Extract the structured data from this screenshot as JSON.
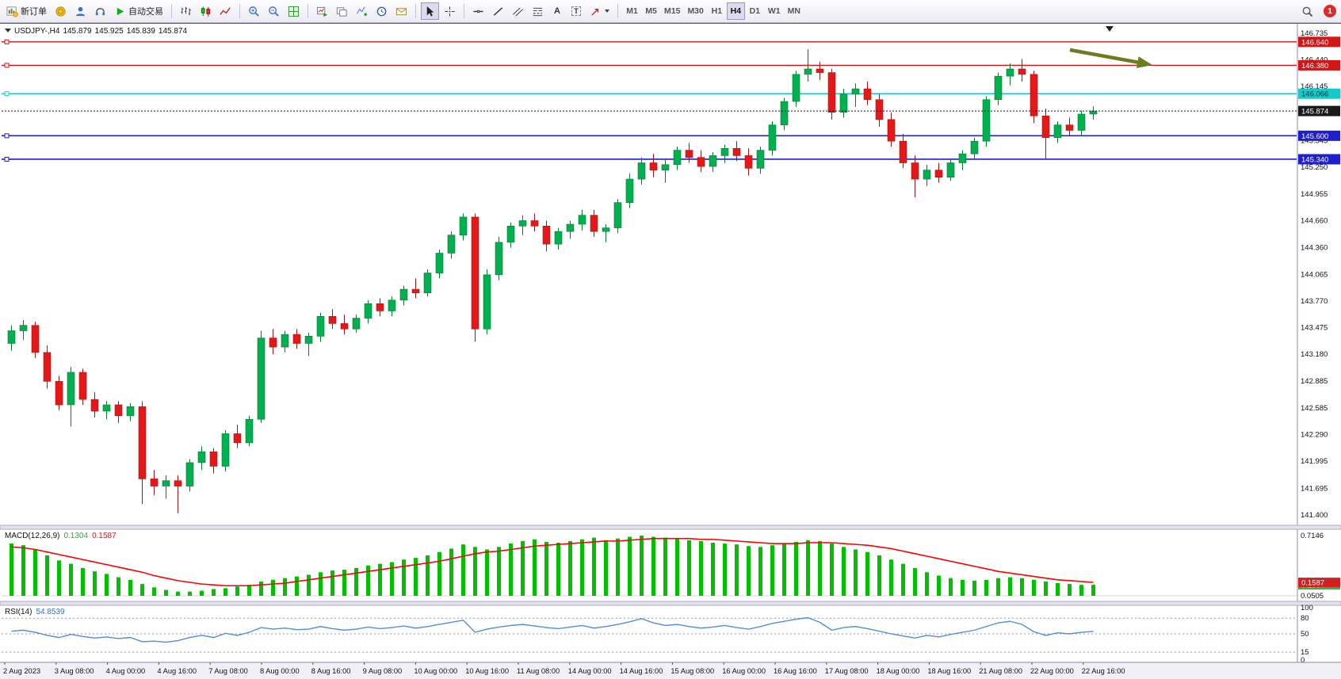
{
  "toolbar": {
    "new_order": "新订单",
    "auto_trading": "自动交易",
    "text_tool": "A",
    "label_tool": "T",
    "timeframes": [
      "M1",
      "M5",
      "M15",
      "M30",
      "H1",
      "H4",
      "D1",
      "W1",
      "MN"
    ],
    "active_timeframe": "H4",
    "notification_badge": "1"
  },
  "chart_header": {
    "symbol_period": "USDJPY-,H4",
    "open": "145.879",
    "high": "145.925",
    "low": "145.839",
    "close": "145.874"
  },
  "indicators": {
    "macd": {
      "label": "MACD(12,26,9)",
      "value_main": "0.1304",
      "value_signal": "0.1587"
    },
    "rsi": {
      "label": "RSI(14)",
      "value": "54.8539"
    }
  },
  "chart_data": {
    "type": "candlestick",
    "symbol": "USDJPY-",
    "period": "H4",
    "title": "USDJPY-,H4 145.879 145.925 145.839 145.874",
    "price_axis_ticks": [
      "146.735",
      "146.440",
      "146.145",
      "145.850",
      "145.545",
      "145.250",
      "144.955",
      "144.660",
      "144.360",
      "144.065",
      "143.770",
      "143.475",
      "143.180",
      "142.885",
      "142.585",
      "142.290",
      "141.995",
      "141.695",
      "141.400"
    ],
    "hlines": [
      {
        "price": 146.64,
        "label": "146.640",
        "color": "#d01616",
        "width": 1.3,
        "anchor": true,
        "tag_fg": "#ffffff"
      },
      {
        "price": 146.38,
        "label": "146.380",
        "color": "#d01616",
        "width": 1.3,
        "anchor": true,
        "tag_fg": "#ffffff"
      },
      {
        "price": 146.066,
        "label": "146.066",
        "color": "#17c9c9",
        "width": 1.6,
        "anchor": true,
        "tag_fg": "#063a3a"
      },
      {
        "price": 145.874,
        "label": "145.874",
        "color": "#1a1a1a",
        "width": 1,
        "style": "dotted",
        "role": "current",
        "tag_fg": "#ffffff"
      },
      {
        "price": 145.6,
        "label": "145.600",
        "color": "#1f1fd0",
        "width": 1.6,
        "anchor": true,
        "tag_fg": "#ffffff"
      },
      {
        "price": 145.34,
        "label": "145.340",
        "color": "#1f1fd0",
        "width": 1.6,
        "anchor": true,
        "tag_fg": "#ffffff"
      }
    ],
    "candles": [
      [
        143.3,
        143.5,
        143.22,
        143.44
      ],
      [
        143.44,
        143.56,
        143.34,
        143.5
      ],
      [
        143.5,
        143.54,
        143.14,
        143.2
      ],
      [
        143.2,
        143.28,
        142.8,
        142.88
      ],
      [
        142.88,
        142.94,
        142.56,
        142.62
      ],
      [
        142.62,
        143.04,
        142.38,
        142.98
      ],
      [
        142.98,
        143.02,
        142.62,
        142.68
      ],
      [
        142.68,
        142.76,
        142.48,
        142.55
      ],
      [
        142.55,
        142.66,
        142.46,
        142.62
      ],
      [
        142.62,
        142.66,
        142.42,
        142.5
      ],
      [
        142.5,
        142.64,
        142.44,
        142.6
      ],
      [
        142.6,
        142.66,
        141.52,
        141.8
      ],
      [
        141.8,
        141.9,
        141.62,
        141.72
      ],
      [
        141.72,
        141.84,
        141.58,
        141.78
      ],
      [
        141.78,
        141.84,
        141.42,
        141.72
      ],
      [
        141.72,
        142.02,
        141.66,
        141.98
      ],
      [
        141.98,
        142.16,
        141.9,
        142.1
      ],
      [
        142.1,
        142.14,
        141.86,
        141.94
      ],
      [
        141.94,
        142.34,
        141.88,
        142.3
      ],
      [
        142.3,
        142.4,
        142.14,
        142.2
      ],
      [
        142.2,
        142.5,
        142.16,
        142.46
      ],
      [
        142.46,
        143.44,
        142.42,
        143.36
      ],
      [
        143.36,
        143.46,
        143.18,
        143.26
      ],
      [
        143.26,
        143.44,
        143.2,
        143.4
      ],
      [
        143.4,
        143.46,
        143.24,
        143.3
      ],
      [
        143.3,
        143.42,
        143.16,
        143.38
      ],
      [
        143.38,
        143.64,
        143.32,
        143.6
      ],
      [
        143.6,
        143.68,
        143.46,
        143.52
      ],
      [
        143.52,
        143.62,
        143.4,
        143.46
      ],
      [
        143.46,
        143.62,
        143.42,
        143.58
      ],
      [
        143.58,
        143.78,
        143.52,
        143.74
      ],
      [
        143.74,
        143.8,
        143.6,
        143.66
      ],
      [
        143.66,
        143.82,
        143.6,
        143.78
      ],
      [
        143.78,
        143.94,
        143.72,
        143.9
      ],
      [
        143.9,
        144.02,
        143.8,
        143.86
      ],
      [
        143.86,
        144.12,
        143.82,
        144.08
      ],
      [
        144.08,
        144.34,
        144.02,
        144.3
      ],
      [
        144.3,
        144.54,
        144.24,
        144.5
      ],
      [
        144.5,
        144.74,
        144.44,
        144.7
      ],
      [
        144.7,
        144.74,
        143.32,
        143.46
      ],
      [
        143.46,
        144.12,
        143.4,
        144.06
      ],
      [
        144.06,
        144.48,
        144.0,
        144.42
      ],
      [
        144.42,
        144.64,
        144.36,
        144.6
      ],
      [
        144.6,
        144.72,
        144.5,
        144.66
      ],
      [
        144.66,
        144.74,
        144.54,
        144.6
      ],
      [
        144.6,
        144.66,
        144.32,
        144.4
      ],
      [
        144.4,
        144.58,
        144.34,
        144.54
      ],
      [
        144.54,
        144.66,
        144.46,
        144.62
      ],
      [
        144.62,
        144.78,
        144.55,
        144.72
      ],
      [
        144.72,
        144.78,
        144.48,
        144.54
      ],
      [
        144.54,
        144.62,
        144.42,
        144.58
      ],
      [
        144.58,
        144.9,
        144.52,
        144.86
      ],
      [
        144.86,
        145.18,
        144.8,
        145.12
      ],
      [
        145.12,
        145.36,
        145.06,
        145.3
      ],
      [
        145.3,
        145.4,
        145.14,
        145.22
      ],
      [
        145.22,
        145.34,
        145.08,
        145.28
      ],
      [
        145.28,
        145.48,
        145.22,
        145.44
      ],
      [
        145.44,
        145.52,
        145.3,
        145.36
      ],
      [
        145.36,
        145.44,
        145.2,
        145.26
      ],
      [
        145.26,
        145.42,
        145.2,
        145.38
      ],
      [
        145.38,
        145.5,
        145.3,
        145.46
      ],
      [
        145.46,
        145.54,
        145.32,
        145.38
      ],
      [
        145.38,
        145.46,
        145.16,
        145.24
      ],
      [
        145.24,
        145.48,
        145.18,
        145.44
      ],
      [
        145.44,
        145.76,
        145.38,
        145.72
      ],
      [
        145.72,
        146.02,
        145.66,
        145.98
      ],
      [
        145.98,
        146.32,
        145.92,
        146.28
      ],
      [
        146.28,
        146.56,
        146.2,
        146.34
      ],
      [
        146.34,
        146.42,
        146.22,
        146.3
      ],
      [
        146.3,
        146.34,
        145.78,
        145.86
      ],
      [
        145.86,
        146.12,
        145.8,
        146.06
      ],
      [
        146.06,
        146.18,
        145.92,
        146.12
      ],
      [
        146.12,
        146.2,
        145.94,
        146.0
      ],
      [
        146.0,
        146.06,
        145.7,
        145.78
      ],
      [
        145.78,
        145.86,
        145.48,
        145.54
      ],
      [
        145.54,
        145.62,
        145.24,
        145.3
      ],
      [
        145.3,
        145.38,
        144.92,
        145.12
      ],
      [
        145.12,
        145.28,
        145.04,
        145.22
      ],
      [
        145.22,
        145.3,
        145.08,
        145.14
      ],
      [
        145.14,
        145.34,
        145.1,
        145.3
      ],
      [
        145.3,
        145.44,
        145.22,
        145.4
      ],
      [
        145.4,
        145.58,
        145.34,
        145.54
      ],
      [
        145.54,
        146.04,
        145.48,
        146.0
      ],
      [
        146.0,
        146.3,
        145.94,
        146.26
      ],
      [
        146.26,
        146.4,
        146.16,
        146.34
      ],
      [
        146.34,
        146.45,
        146.2,
        146.28
      ],
      [
        146.28,
        146.32,
        145.74,
        145.82
      ],
      [
        145.82,
        145.9,
        145.35,
        145.58
      ],
      [
        145.58,
        145.76,
        145.52,
        145.72
      ],
      [
        145.72,
        145.8,
        145.6,
        145.66
      ],
      [
        145.66,
        145.88,
        145.6,
        145.84
      ],
      [
        145.84,
        145.925,
        145.78,
        145.874
      ]
    ],
    "time_labels": [
      "2 Aug 2023",
      "3 Aug 08:00",
      "4 Aug 00:00",
      "4 Aug 16:00",
      "7 Aug 08:00",
      "8 Aug 00:00",
      "8 Aug 16:00",
      "9 Aug 08:00",
      "10 Aug 00:00",
      "10 Aug 16:00",
      "11 Aug 08:00",
      "14 Aug 00:00",
      "14 Aug 16:00",
      "15 Aug 08:00",
      "16 Aug 00:00",
      "16 Aug 16:00",
      "17 Aug 08:00",
      "18 Aug 00:00",
      "18 Aug 16:00",
      "21 Aug 08:00",
      "22 Aug 00:00",
      "22 Aug 16:00"
    ],
    "macd": {
      "label": "MACD(12,26,9)",
      "axis_max": "0.7146",
      "axis_min": "0.0505",
      "current_main": "0.1304",
      "current_signal": "0.1587",
      "histogram": [
        0.62,
        0.6,
        0.55,
        0.48,
        0.42,
        0.38,
        0.33,
        0.29,
        0.26,
        0.22,
        0.19,
        0.14,
        0.1,
        0.07,
        0.05,
        0.05,
        0.06,
        0.08,
        0.09,
        0.11,
        0.13,
        0.17,
        0.19,
        0.21,
        0.23,
        0.25,
        0.28,
        0.3,
        0.31,
        0.33,
        0.36,
        0.38,
        0.4,
        0.43,
        0.45,
        0.48,
        0.52,
        0.56,
        0.61,
        0.58,
        0.55,
        0.58,
        0.62,
        0.65,
        0.67,
        0.64,
        0.63,
        0.65,
        0.67,
        0.69,
        0.66,
        0.68,
        0.7,
        0.7146,
        0.7,
        0.69,
        0.68,
        0.66,
        0.65,
        0.63,
        0.62,
        0.61,
        0.59,
        0.58,
        0.6,
        0.62,
        0.64,
        0.66,
        0.65,
        0.62,
        0.58,
        0.55,
        0.52,
        0.48,
        0.43,
        0.38,
        0.33,
        0.28,
        0.24,
        0.21,
        0.19,
        0.18,
        0.19,
        0.21,
        0.22,
        0.21,
        0.19,
        0.17,
        0.15,
        0.14,
        0.13,
        0.1304
      ],
      "signal": [
        0.58,
        0.57,
        0.55,
        0.52,
        0.49,
        0.46,
        0.43,
        0.4,
        0.37,
        0.34,
        0.31,
        0.28,
        0.24,
        0.21,
        0.18,
        0.16,
        0.14,
        0.13,
        0.12,
        0.12,
        0.12,
        0.13,
        0.14,
        0.15,
        0.17,
        0.19,
        0.21,
        0.23,
        0.25,
        0.27,
        0.29,
        0.31,
        0.33,
        0.35,
        0.37,
        0.39,
        0.41,
        0.44,
        0.47,
        0.5,
        0.52,
        0.53,
        0.55,
        0.57,
        0.59,
        0.6,
        0.61,
        0.62,
        0.63,
        0.64,
        0.65,
        0.65,
        0.66,
        0.67,
        0.68,
        0.68,
        0.68,
        0.68,
        0.67,
        0.67,
        0.66,
        0.65,
        0.64,
        0.63,
        0.62,
        0.62,
        0.62,
        0.63,
        0.63,
        0.63,
        0.62,
        0.61,
        0.6,
        0.58,
        0.56,
        0.53,
        0.5,
        0.47,
        0.44,
        0.41,
        0.38,
        0.35,
        0.32,
        0.29,
        0.27,
        0.25,
        0.23,
        0.21,
        0.19,
        0.18,
        0.17,
        0.1587
      ]
    },
    "rsi": {
      "label": "RSI(14)",
      "current": "54.8539",
      "levels": [
        "100",
        "80",
        "50",
        "15",
        "0"
      ],
      "levels_dashed": [
        80,
        50,
        15
      ],
      "series": [
        55,
        57,
        53,
        47,
        43,
        49,
        45,
        42,
        44,
        41,
        43,
        35,
        36,
        34,
        37,
        43,
        47,
        43,
        51,
        47,
        53,
        62,
        59,
        61,
        58,
        59,
        64,
        60,
        57,
        59,
        63,
        60,
        62,
        65,
        61,
        64,
        68,
        72,
        76,
        53,
        59,
        63,
        66,
        68,
        65,
        62,
        60,
        63,
        66,
        61,
        64,
        68,
        73,
        79,
        71,
        66,
        68,
        64,
        61,
        63,
        66,
        62,
        59,
        64,
        70,
        74,
        78,
        81,
        72,
        57,
        62,
        64,
        60,
        55,
        50,
        46,
        42,
        47,
        44,
        49,
        53,
        57,
        64,
        71,
        74,
        68,
        54,
        47,
        52,
        50,
        53,
        54.85
      ]
    },
    "annotations": [
      {
        "type": "arrow",
        "from": [
          1350,
          33
        ],
        "to": [
          1454,
          52
        ],
        "color": "#6a7d20"
      }
    ],
    "colors": {
      "up": "#00b050",
      "down": "#e81717",
      "up_stroke": "#067b2f",
      "down_stroke": "#a31414",
      "macd_hist": "#00c000",
      "macd_signal": "#ff0000",
      "rsi_line": "#4f8fd6",
      "bg": "#ffffff",
      "axis_text": "#111111"
    }
  }
}
